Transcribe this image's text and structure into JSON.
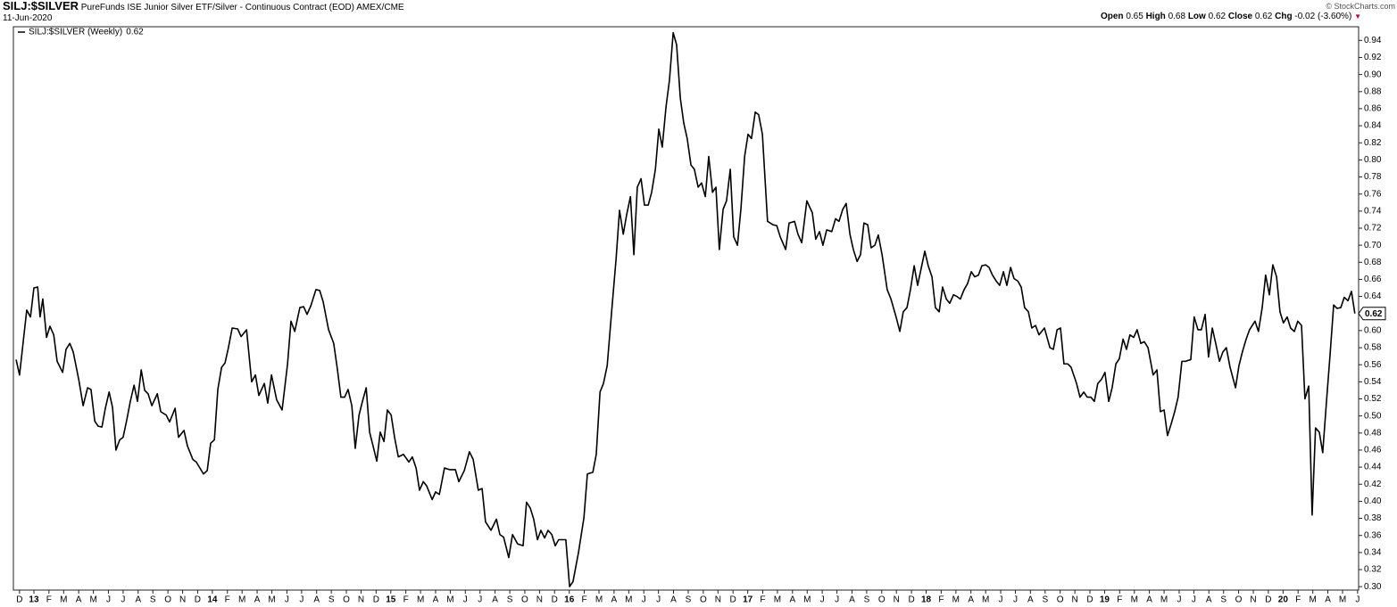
{
  "header": {
    "symbol": "SILJ:$SILVER",
    "description": "PureFunds ISE Junior Silver ETF/Silver - Continuous Contract (EOD)",
    "exchange": "AMEX/CME",
    "date": "11-Jun-2020",
    "credit": "© StockCharts.com",
    "quote": [
      {
        "label": "Open",
        "value": 0.65
      },
      {
        "label": "High",
        "value": 0.68
      },
      {
        "label": "Low",
        "value": 0.62
      },
      {
        "label": "Close",
        "value": 0.62
      }
    ],
    "change": {
      "label": "Chg",
      "value": -0.02,
      "percent": {
        "value": -3.6,
        "label": "(-3.60%)"
      }
    }
  },
  "chart_data": {
    "type": "line",
    "grid": false,
    "x": [
      0,
      1.0,
      3.1,
      4.2,
      5.2,
      6.3,
      7.0,
      7.8,
      8.9,
      9.9,
      11.0,
      12.0,
      13.6,
      14.6,
      15.7,
      16.7,
      18.3,
      19.6,
      20.9,
      21.9,
      23.0,
      24.0,
      25.1,
      26.1,
      27.2,
      28.2,
      29.2,
      30.3,
      31.3,
      32.4,
      33.4,
      34.5,
      35.5,
      36.6,
      37.6,
      38.6,
      39.7,
      41.3,
      42.3,
      43.9,
      44.9,
      46.5,
      47.5,
      49.1,
      50.1,
      51.7,
      52.7,
      54.8,
      55.9,
      56.9,
      58.0,
      59.0,
      60.1,
      61.1,
      62.1,
      63.2,
      64.8,
      65.8,
      67.4,
      68.9,
      70.0,
      71.0,
      72.6,
      73.6,
      74.7,
      76.2,
      77.8,
      79.4,
      80.4,
      81.5,
      83.0,
      84.1,
      85.1,
      86.2,
      87.7,
      88.8,
      89.8,
      91.4,
      92.9,
      94.0,
      95.0,
      96.1,
      97.1,
      98.2,
      99.2,
      100.3,
      101.3,
      102.4,
      103.4,
      104.4,
      105.5,
      106.5,
      107.6,
      108.6,
      109.7,
      110.7,
      111.8,
      113.3,
      114.9,
      115.9,
      117.0,
      118.0,
      119.1,
      120.1,
      121.7,
      122.7,
      123.8,
      125.3,
      126.9,
      128.5,
      129.5,
      131.1,
      132.6,
      133.7,
      135.2,
      136.3,
      137.3,
      138.9,
      140.5,
      141.5,
      142.6,
      144.1,
      145.2,
      146.7,
      148.3,
      149.3,
      150.4,
      151.4,
      152.5,
      153.5,
      154.6,
      155.6,
      156.7,
      157.7,
      158.7,
      159.8,
      160.8,
      161.9,
      162.9,
      164.5,
      166.1,
      167.1,
      168.7,
      169.7,
      170.8,
      171.8,
      172.9,
      174.4,
      175.5,
      176.5,
      177.6,
      178.6,
      179.7,
      180.7,
      181.7,
      182.8,
      183.8,
      184.9,
      185.9,
      187.0,
      188.0,
      189.0,
      190.1,
      191.1,
      192.2,
      193.2,
      194.3,
      195.3,
      196.3,
      197.4,
      198.4,
      199.5,
      200.5,
      201.6,
      202.6,
      203.7,
      204.7,
      205.7,
      206.8,
      207.8,
      208.9,
      209.9,
      211.0,
      212.0,
      213.1,
      214.1,
      215.1,
      216.2,
      217.2,
      218.3,
      219.8,
      221.4,
      222.5,
      223.5,
      225.1,
      226.1,
      227.7,
      228.7,
      229.8,
      231.3,
      232.9,
      233.9,
      235.0,
      236.0,
      237.1,
      238.6,
      239.7,
      240.7,
      241.8,
      242.8,
      243.9,
      244.9,
      246.0,
      247.0,
      248.0,
      249.1,
      250.1,
      251.2,
      252.2,
      253.3,
      254.8,
      255.9,
      257.4,
      258.5,
      259.5,
      260.6,
      261.6,
      262.7,
      263.7,
      264.8,
      265.8,
      266.8,
      267.9,
      268.9,
      270.0,
      271.0,
      272.1,
      273.1,
      274.2,
      275.2,
      276.2,
      277.3,
      278.3,
      279.4,
      280.4,
      281.5,
      282.5,
      283.6,
      284.6,
      285.6,
      286.7,
      287.7,
      288.8,
      289.8,
      290.9,
      291.9,
      293.0,
      294.0,
      295.0,
      296.1,
      297.1,
      298.2,
      299.2,
      300.8,
      302.4,
      303.4,
      304.5,
      305.5,
      306.5,
      307.6,
      308.6,
      310.2,
      311.2,
      312.3,
      313.3,
      314.4,
      315.4,
      316.4,
      317.5,
      318.5,
      319.6,
      320.6,
      321.7,
      322.7,
      323.8,
      324.8,
      325.8,
      326.9,
      327.9,
      329.0,
      330.0,
      331.1,
      332.6,
      333.7,
      334.7,
      335.8,
      336.8,
      337.9,
      338.9,
      339.9,
      341.0,
      342.0,
      343.6,
      344.6,
      345.7,
      346.7,
      347.8,
      348.8,
      349.9,
      350.9,
      352.0,
      353.0,
      354.0,
      355.1,
      356.7,
      357.7,
      358.7,
      359.8,
      360.8,
      362.4,
      363.4,
      364.5,
      365.5,
      366.6,
      367.6,
      368.7,
      369.7,
      370.7,
      371.8,
      372.8,
      373.9,
      374.9,
      376.0,
      377.0,
      378.1,
      379.1,
      380.1,
      381.2,
      382.2,
      383.3,
      384.3,
      385.4,
      386.4,
      387.5,
      388.5,
      389.6,
      390.6,
      391.6
    ],
    "series": [
      {
        "name": "SILJ:$SILVER (Weekly)",
        "color": "#000000",
        "last_value": 0.62,
        "values": [
          0.566,
          0.548,
          0.624,
          0.616,
          0.65,
          0.651,
          0.616,
          0.637,
          0.592,
          0.605,
          0.595,
          0.564,
          0.551,
          0.578,
          0.585,
          0.575,
          0.543,
          0.512,
          0.533,
          0.531,
          0.494,
          0.488,
          0.487,
          0.509,
          0.528,
          0.51,
          0.46,
          0.472,
          0.475,
          0.496,
          0.517,
          0.536,
          0.517,
          0.554,
          0.53,
          0.526,
          0.512,
          0.526,
          0.505,
          0.501,
          0.493,
          0.509,
          0.475,
          0.483,
          0.465,
          0.449,
          0.446,
          0.432,
          0.436,
          0.468,
          0.472,
          0.531,
          0.557,
          0.562,
          0.58,
          0.603,
          0.602,
          0.593,
          0.601,
          0.54,
          0.548,
          0.524,
          0.538,
          0.515,
          0.548,
          0.519,
          0.507,
          0.561,
          0.611,
          0.599,
          0.627,
          0.628,
          0.619,
          0.629,
          0.648,
          0.647,
          0.634,
          0.601,
          0.585,
          0.554,
          0.522,
          0.522,
          0.531,
          0.512,
          0.462,
          0.501,
          0.517,
          0.533,
          0.481,
          0.465,
          0.447,
          0.481,
          0.47,
          0.507,
          0.501,
          0.475,
          0.452,
          0.455,
          0.446,
          0.452,
          0.439,
          0.413,
          0.423,
          0.418,
          0.402,
          0.411,
          0.408,
          0.439,
          0.437,
          0.437,
          0.423,
          0.436,
          0.458,
          0.449,
          0.413,
          0.415,
          0.376,
          0.366,
          0.379,
          0.361,
          0.358,
          0.334,
          0.361,
          0.35,
          0.348,
          0.399,
          0.392,
          0.379,
          0.355,
          0.366,
          0.357,
          0.366,
          0.361,
          0.348,
          0.355,
          0.355,
          0.355,
          0.3,
          0.306,
          0.34,
          0.381,
          0.432,
          0.434,
          0.455,
          0.528,
          0.538,
          0.559,
          0.632,
          0.684,
          0.741,
          0.713,
          0.736,
          0.757,
          0.689,
          0.768,
          0.778,
          0.747,
          0.747,
          0.762,
          0.789,
          0.836,
          0.815,
          0.862,
          0.893,
          0.949,
          0.935,
          0.872,
          0.843,
          0.825,
          0.794,
          0.789,
          0.768,
          0.773,
          0.757,
          0.804,
          0.762,
          0.768,
          0.695,
          0.742,
          0.752,
          0.789,
          0.71,
          0.7,
          0.742,
          0.804,
          0.83,
          0.825,
          0.856,
          0.853,
          0.83,
          0.728,
          0.724,
          0.723,
          0.71,
          0.695,
          0.726,
          0.728,
          0.713,
          0.703,
          0.752,
          0.738,
          0.707,
          0.716,
          0.7,
          0.718,
          0.716,
          0.731,
          0.728,
          0.742,
          0.749,
          0.713,
          0.695,
          0.681,
          0.689,
          0.726,
          0.724,
          0.697,
          0.7,
          0.712,
          0.689,
          0.648,
          0.637,
          0.616,
          0.599,
          0.622,
          0.627,
          0.648,
          0.676,
          0.653,
          0.674,
          0.693,
          0.676,
          0.663,
          0.627,
          0.622,
          0.651,
          0.637,
          0.632,
          0.642,
          0.64,
          0.637,
          0.648,
          0.655,
          0.669,
          0.663,
          0.665,
          0.676,
          0.677,
          0.674,
          0.665,
          0.658,
          0.653,
          0.669,
          0.653,
          0.674,
          0.661,
          0.658,
          0.651,
          0.627,
          0.622,
          0.603,
          0.606,
          0.595,
          0.603,
          0.58,
          0.578,
          0.601,
          0.603,
          0.561,
          0.561,
          0.557,
          0.538,
          0.522,
          0.528,
          0.522,
          0.522,
          0.517,
          0.538,
          0.543,
          0.551,
          0.517,
          0.533,
          0.561,
          0.567,
          0.59,
          0.578,
          0.595,
          0.592,
          0.601,
          0.585,
          0.587,
          0.58,
          0.548,
          0.554,
          0.505,
          0.507,
          0.477,
          0.491,
          0.505,
          0.522,
          0.564,
          0.564,
          0.566,
          0.616,
          0.601,
          0.601,
          0.619,
          0.569,
          0.603,
          0.585,
          0.564,
          0.575,
          0.58,
          0.557,
          0.533,
          0.559,
          0.575,
          0.59,
          0.601,
          0.611,
          0.599,
          0.627,
          0.665,
          0.642,
          0.677,
          0.663,
          0.622,
          0.609,
          0.616,
          0.603,
          0.599,
          0.611,
          0.606,
          0.52,
          0.535,
          0.384,
          0.486,
          0.481,
          0.457,
          0.517,
          0.569,
          0.63,
          0.626,
          0.627,
          0.639,
          0.635,
          0.646,
          0.62
        ]
      }
    ],
    "xlim": [
      -0.8,
      392.7
    ],
    "ylim": [
      0.296,
      0.956
    ],
    "yticks": [
      {
        "value": 0.3,
        "label": "0.30"
      },
      0.32,
      0.34,
      0.36,
      0.38,
      {
        "value": 0.4,
        "label": "0.40"
      },
      0.42,
      0.44,
      0.46,
      0.48,
      {
        "value": 0.5,
        "label": "0.50"
      },
      0.52,
      0.54,
      0.56,
      0.58,
      {
        "value": 0.6,
        "label": "0.60"
      },
      0.62,
      0.64,
      0.66,
      0.68,
      {
        "value": 0.7,
        "label": "0.70"
      },
      0.72,
      0.74,
      0.76,
      0.78,
      {
        "value": 0.8,
        "label": "0.80"
      },
      0.82,
      0.84,
      0.86,
      0.88,
      {
        "value": 0.9,
        "label": "0.90"
      },
      0.92,
      0.94
    ],
    "xticks": [
      {
        "value": 1.0,
        "label": "D"
      },
      {
        "value": 5.2,
        "label": "13"
      },
      {
        "value": 9.6,
        "label": "F"
      },
      {
        "value": 13.9,
        "label": "M"
      },
      {
        "value": 18.3,
        "label": "A"
      },
      {
        "value": 22.6,
        "label": "M"
      },
      {
        "value": 27.0,
        "label": "J"
      },
      {
        "value": 31.3,
        "label": "J"
      },
      {
        "value": 35.7,
        "label": "A"
      },
      {
        "value": 40.0,
        "label": "S"
      },
      {
        "value": 44.4,
        "label": "O"
      },
      {
        "value": 48.7,
        "label": "N"
      },
      {
        "value": 53.1,
        "label": "D"
      },
      {
        "value": 57.4,
        "label": "14"
      },
      {
        "value": 61.8,
        "label": "F"
      },
      {
        "value": 66.1,
        "label": "M"
      },
      {
        "value": 70.5,
        "label": "A"
      },
      {
        "value": 74.8,
        "label": "M"
      },
      {
        "value": 79.2,
        "label": "J"
      },
      {
        "value": 83.5,
        "label": "J"
      },
      {
        "value": 87.9,
        "label": "A"
      },
      {
        "value": 92.2,
        "label": "S"
      },
      {
        "value": 96.6,
        "label": "O"
      },
      {
        "value": 100.9,
        "label": "N"
      },
      {
        "value": 105.3,
        "label": "D"
      },
      {
        "value": 109.6,
        "label": "15"
      },
      {
        "value": 114.0,
        "label": "F"
      },
      {
        "value": 118.3,
        "label": "M"
      },
      {
        "value": 122.7,
        "label": "A"
      },
      {
        "value": 127.0,
        "label": "M"
      },
      {
        "value": 131.4,
        "label": "J"
      },
      {
        "value": 135.7,
        "label": "J"
      },
      {
        "value": 140.1,
        "label": "A"
      },
      {
        "value": 144.4,
        "label": "S"
      },
      {
        "value": 148.8,
        "label": "O"
      },
      {
        "value": 153.1,
        "label": "N"
      },
      {
        "value": 157.5,
        "label": "D"
      },
      {
        "value": 161.8,
        "label": "16"
      },
      {
        "value": 166.2,
        "label": "F"
      },
      {
        "value": 170.5,
        "label": "M"
      },
      {
        "value": 174.9,
        "label": "A"
      },
      {
        "value": 179.2,
        "label": "M"
      },
      {
        "value": 183.6,
        "label": "J"
      },
      {
        "value": 187.9,
        "label": "J"
      },
      {
        "value": 192.3,
        "label": "A"
      },
      {
        "value": 196.6,
        "label": "S"
      },
      {
        "value": 201.0,
        "label": "O"
      },
      {
        "value": 205.3,
        "label": "N"
      },
      {
        "value": 209.7,
        "label": "D"
      },
      {
        "value": 214.0,
        "label": "17"
      },
      {
        "value": 218.4,
        "label": "F"
      },
      {
        "value": 222.7,
        "label": "M"
      },
      {
        "value": 227.1,
        "label": "A"
      },
      {
        "value": 231.4,
        "label": "M"
      },
      {
        "value": 235.8,
        "label": "J"
      },
      {
        "value": 240.1,
        "label": "J"
      },
      {
        "value": 244.5,
        "label": "A"
      },
      {
        "value": 248.8,
        "label": "S"
      },
      {
        "value": 253.2,
        "label": "O"
      },
      {
        "value": 257.5,
        "label": "N"
      },
      {
        "value": 261.9,
        "label": "D"
      },
      {
        "value": 266.2,
        "label": "18"
      },
      {
        "value": 270.6,
        "label": "F"
      },
      {
        "value": 274.9,
        "label": "M"
      },
      {
        "value": 279.3,
        "label": "A"
      },
      {
        "value": 283.6,
        "label": "M"
      },
      {
        "value": 288.0,
        "label": "J"
      },
      {
        "value": 292.3,
        "label": "J"
      },
      {
        "value": 296.7,
        "label": "A"
      },
      {
        "value": 301.0,
        "label": "S"
      },
      {
        "value": 305.4,
        "label": "O"
      },
      {
        "value": 309.7,
        "label": "N"
      },
      {
        "value": 314.1,
        "label": "D"
      },
      {
        "value": 318.4,
        "label": "19"
      },
      {
        "value": 322.8,
        "label": "F"
      },
      {
        "value": 327.1,
        "label": "M"
      },
      {
        "value": 331.5,
        "label": "A"
      },
      {
        "value": 335.8,
        "label": "M"
      },
      {
        "value": 340.2,
        "label": "J"
      },
      {
        "value": 344.5,
        "label": "J"
      },
      {
        "value": 348.9,
        "label": "A"
      },
      {
        "value": 353.2,
        "label": "S"
      },
      {
        "value": 357.6,
        "label": "O"
      },
      {
        "value": 361.9,
        "label": "N"
      },
      {
        "value": 366.3,
        "label": "D"
      },
      {
        "value": 370.6,
        "label": "20"
      },
      {
        "value": 375.0,
        "label": "F"
      },
      {
        "value": 379.3,
        "label": "M"
      },
      {
        "value": 383.7,
        "label": "A"
      },
      {
        "value": 388.0,
        "label": "M"
      },
      {
        "value": 392.4,
        "label": "J"
      }
    ]
  }
}
